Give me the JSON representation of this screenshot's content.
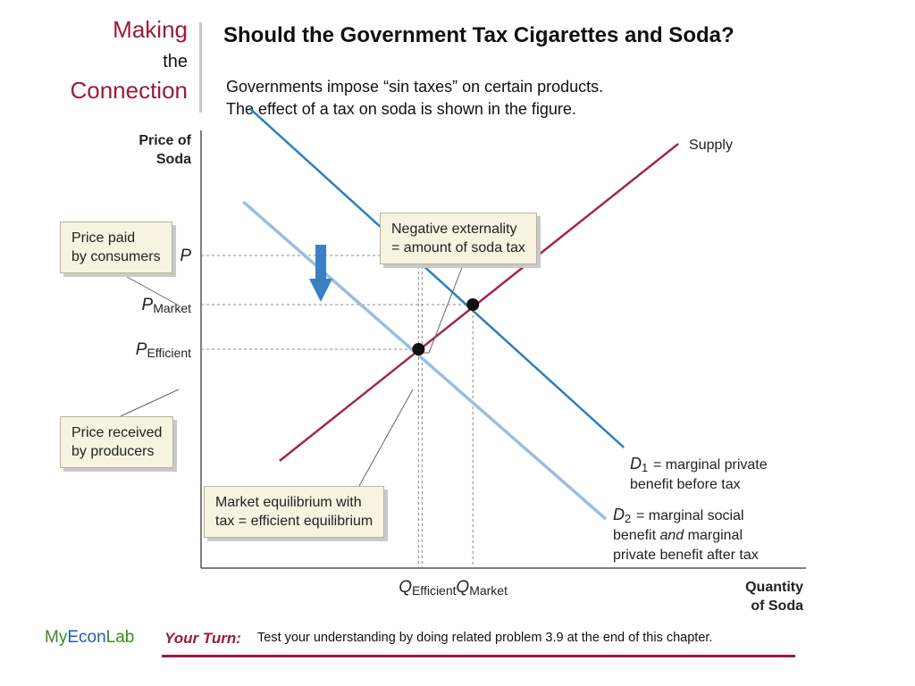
{
  "branding": {
    "making": "Making",
    "the": "the",
    "connection": "Connection"
  },
  "slide": {
    "title": "Should the Government Tax Cigarettes and Soda?",
    "intro_line1": "Governments impose “sin taxes” on certain products.",
    "intro_line2": "The effect of a tax on soda is shown in the figure."
  },
  "callouts": {
    "price_paid": [
      "Price paid",
      "by consumers"
    ],
    "price_received": [
      "Price received",
      "by producers"
    ],
    "negative_externality": [
      "Negative externality",
      "= amount of soda tax"
    ],
    "market_equilibrium": [
      "Market equilibrium with",
      "tax = efficient equilibrium"
    ]
  },
  "colors": {
    "supply": "#a3284a",
    "d1": "#2a7fbf",
    "d2": "#9cbde0",
    "brand": "#9b1c3a",
    "arrow": "#3b7fc4"
  },
  "chart_data": {
    "type": "line",
    "title": "",
    "ylabel": [
      "Price of",
      "Soda"
    ],
    "xlabel": [
      "Quantity",
      "of Soda"
    ],
    "xlim": [
      0,
      100
    ],
    "ylim": [
      0,
      100
    ],
    "numeric_ticks": false,
    "grid": false,
    "y_ticks": [
      {
        "main": "P",
        "sub": "",
        "value": 70
      },
      {
        "main": "P",
        "sub": "Market",
        "value": 59
      },
      {
        "main": "P",
        "sub": "Efficient",
        "value": 49
      }
    ],
    "x_ticks": [
      {
        "main": "Q",
        "sub": "Efficient",
        "value": 36
      },
      {
        "main": "Q",
        "sub": "Market",
        "value": 45
      }
    ],
    "series": [
      {
        "name": "Supply",
        "label_lines": [
          "Supply"
        ],
        "color": "#a3284a",
        "points": [
          [
            13,
            24
          ],
          [
            79,
            95
          ]
        ]
      },
      {
        "name": "D1",
        "label_lines": [
          "= marginal private",
          "benefit before tax"
        ],
        "color": "#2a7fbf",
        "points": [
          [
            8,
            103
          ],
          [
            70,
            27
          ]
        ]
      },
      {
        "name": "D2",
        "label_lines": [
          "= marginal social",
          "benefit and marginal",
          "private benefit after tax"
        ],
        "color": "#9cbde0",
        "points": [
          [
            7,
            82
          ],
          [
            67,
            11
          ]
        ]
      }
    ],
    "equilibria": [
      {
        "name": "market",
        "x": 45,
        "y": 59
      },
      {
        "name": "efficient",
        "x": 36,
        "y": 49
      }
    ]
  },
  "footer": {
    "brand_my": "My",
    "brand_econ": "Econ",
    "brand_lab": "Lab",
    "your_turn": "Your Turn:",
    "text": "Test your understanding by doing related problem 3.9 at the end of this chapter."
  }
}
